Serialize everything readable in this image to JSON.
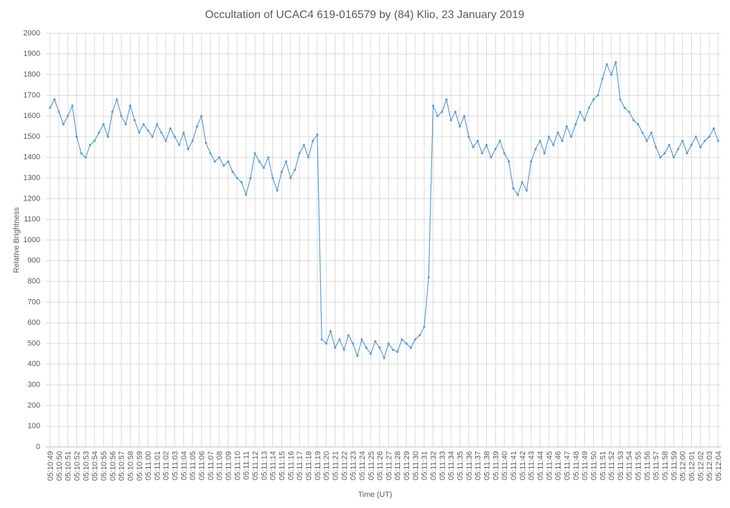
{
  "chart_data": {
    "type": "line",
    "title": "Occultation of UCAC4 619-016579 by (84) Klio, 23 January 2019",
    "x_label": "Time (UT)",
    "y_label": "Relative Brightness",
    "categories": [
      "05:10:49",
      null,
      "05:10:50",
      null,
      "05:10:51",
      null,
      "05:10:52",
      null,
      "05:10:53",
      null,
      "05:10:54",
      null,
      "05:10:55",
      null,
      "05:10:56",
      null,
      "05:10:57",
      null,
      "05:10:58",
      null,
      "05:10:59",
      null,
      "05:11:00",
      null,
      "05:11:01",
      null,
      "05:11:02",
      null,
      "05:11:03",
      null,
      "05:11:04",
      null,
      "05:11:05",
      null,
      "05:11:06",
      null,
      "05:11:07",
      null,
      "05:11:08",
      null,
      "05:11:09",
      null,
      "05:11:10",
      null,
      "05:11:11",
      null,
      "05:11:12",
      null,
      "05:11:13",
      null,
      "05:11:14",
      null,
      "05:11:15",
      null,
      "05:11:16",
      null,
      "05:11:17",
      null,
      "05:11:18",
      null,
      "05:11:19",
      null,
      "05:11:20",
      null,
      "05:11:21",
      null,
      "05:11:22",
      null,
      "05:11:23",
      null,
      "05:11:24",
      null,
      "05:11:25",
      null,
      "05:11:26",
      null,
      "05:11:27",
      null,
      "05:11:28",
      null,
      "05:11:29",
      null,
      "05:11:30",
      null,
      "05:11:31",
      null,
      "05:11:32",
      null,
      "05:11:33",
      null,
      "05:11:34",
      null,
      "05:11:35",
      null,
      "05:11:36",
      null,
      "05:11:37",
      null,
      "05:11:38",
      null,
      "05:11:39",
      null,
      "05:11:40",
      null,
      "05:11:41",
      null,
      "05:11:42",
      null,
      "05:11:43",
      null,
      "05:11:44",
      null,
      "05:11:45",
      null,
      "05:11:46",
      null,
      "05:11:47",
      null,
      "05:11:48",
      null,
      "05:11:49",
      null,
      "05:11:50",
      null,
      "05:11:51",
      null,
      "05:11:52",
      null,
      "05:11:53",
      null,
      "05:11:54",
      null,
      "05:11:55",
      null,
      "05:11:56",
      null,
      "05:11:57",
      null,
      "05:11:58",
      null,
      "05:11:59",
      null,
      "05:12:00",
      null,
      "05:12:01",
      null,
      "05:12:02",
      null,
      "05:12:03",
      null,
      "05:12:04"
    ],
    "series": [
      {
        "name": "Relative Brightness",
        "color": "#5b9bd5",
        "values": [
          1640,
          1680,
          1620,
          1560,
          1600,
          1650,
          1500,
          1420,
          1400,
          1460,
          1480,
          1520,
          1560,
          1500,
          1620,
          1680,
          1600,
          1560,
          1650,
          1580,
          1520,
          1560,
          1530,
          1500,
          1560,
          1520,
          1480,
          1540,
          1500,
          1460,
          1520,
          1440,
          1480,
          1550,
          1600,
          1470,
          1420,
          1380,
          1400,
          1360,
          1380,
          1330,
          1300,
          1280,
          1220,
          1300,
          1420,
          1380,
          1350,
          1400,
          1300,
          1240,
          1330,
          1380,
          1300,
          1340,
          1420,
          1460,
          1400,
          1480,
          1510,
          520,
          500,
          560,
          480,
          520,
          470,
          540,
          500,
          440,
          520,
          480,
          450,
          510,
          480,
          430,
          500,
          470,
          460,
          520,
          500,
          480,
          520,
          540,
          580,
          820,
          1650,
          1600,
          1620,
          1680,
          1580,
          1620,
          1550,
          1600,
          1500,
          1450,
          1480,
          1420,
          1460,
          1400,
          1440,
          1480,
          1420,
          1380,
          1250,
          1220,
          1280,
          1240,
          1380,
          1440,
          1480,
          1420,
          1500,
          1460,
          1520,
          1480,
          1550,
          1500,
          1560,
          1620,
          1580,
          1640,
          1680,
          1700,
          1780,
          1850,
          1800,
          1860,
          1680,
          1640,
          1620,
          1580,
          1560,
          1520,
          1480,
          1520,
          1450,
          1400,
          1420,
          1460,
          1400,
          1440,
          1480,
          1420,
          1460,
          1500,
          1450,
          1480,
          1500,
          1540,
          1480
        ]
      }
    ],
    "ylim": [
      0,
      2000
    ],
    "yticks": [
      0,
      100,
      200,
      300,
      400,
      500,
      600,
      700,
      800,
      900,
      1000,
      1100,
      1200,
      1300,
      1400,
      1500,
      1600,
      1700,
      1800,
      1900,
      2000
    ],
    "grid": true
  }
}
